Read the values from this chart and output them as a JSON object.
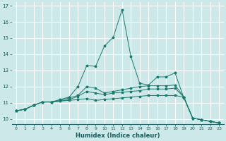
{
  "xlabel": "Humidex (Indice chaleur)",
  "background_color": "#cce8e8",
  "grid_color": "#ffffff",
  "line_color": "#1a7a6e",
  "xlim": [
    -0.5,
    23.5
  ],
  "ylim": [
    9.7,
    17.2
  ],
  "yticks": [
    10,
    11,
    12,
    13,
    14,
    15,
    16,
    17
  ],
  "xticks": [
    0,
    1,
    2,
    3,
    4,
    5,
    6,
    7,
    8,
    9,
    10,
    11,
    12,
    13,
    14,
    15,
    16,
    17,
    18,
    19,
    20,
    21,
    22,
    23
  ],
  "line1_x": [
    0,
    1,
    2,
    3,
    4,
    5,
    6,
    7,
    8,
    9,
    10,
    11,
    12,
    13,
    14,
    15,
    16,
    17,
    18,
    19,
    20,
    21,
    22,
    23
  ],
  "line1_y": [
    10.5,
    10.6,
    10.85,
    11.05,
    11.05,
    11.1,
    11.15,
    11.2,
    11.25,
    11.15,
    11.2,
    11.25,
    11.3,
    11.35,
    11.4,
    11.45,
    11.45,
    11.45,
    11.45,
    11.35,
    10.05,
    9.95,
    9.85,
    9.75
  ],
  "line2_x": [
    0,
    1,
    2,
    3,
    4,
    5,
    6,
    7,
    8,
    9,
    10,
    11,
    12,
    13,
    14,
    15,
    16,
    17,
    18,
    19,
    20,
    21,
    22,
    23
  ],
  "line2_y": [
    10.5,
    10.6,
    10.85,
    11.05,
    11.05,
    11.1,
    11.2,
    11.4,
    11.7,
    11.6,
    11.5,
    11.6,
    11.65,
    11.7,
    11.75,
    11.85,
    11.85,
    11.85,
    11.9,
    11.35,
    10.05,
    9.95,
    9.85,
    9.75
  ],
  "line3_x": [
    0,
    1,
    2,
    3,
    4,
    5,
    6,
    7,
    8,
    9,
    10,
    11,
    12,
    13,
    14,
    15,
    16,
    17,
    18,
    19,
    20,
    21,
    22,
    23
  ],
  "line3_y": [
    10.5,
    10.6,
    10.85,
    11.05,
    11.05,
    11.15,
    11.3,
    11.45,
    12.0,
    11.9,
    11.6,
    11.7,
    11.8,
    11.9,
    12.0,
    12.05,
    12.05,
    12.05,
    12.1,
    11.35,
    10.05,
    9.95,
    9.85,
    9.75
  ],
  "line4_x": [
    0,
    1,
    2,
    3,
    4,
    5,
    6,
    7,
    8,
    9,
    10,
    11,
    12,
    13,
    14,
    15,
    16,
    17,
    18,
    19,
    20,
    21,
    22,
    23
  ],
  "line4_y": [
    10.5,
    10.6,
    10.85,
    11.05,
    11.05,
    11.2,
    11.35,
    12.0,
    13.3,
    13.25,
    14.5,
    15.05,
    16.75,
    13.85,
    12.2,
    12.1,
    12.6,
    12.6,
    12.85,
    11.3,
    10.05,
    9.95,
    9.85,
    9.75
  ]
}
